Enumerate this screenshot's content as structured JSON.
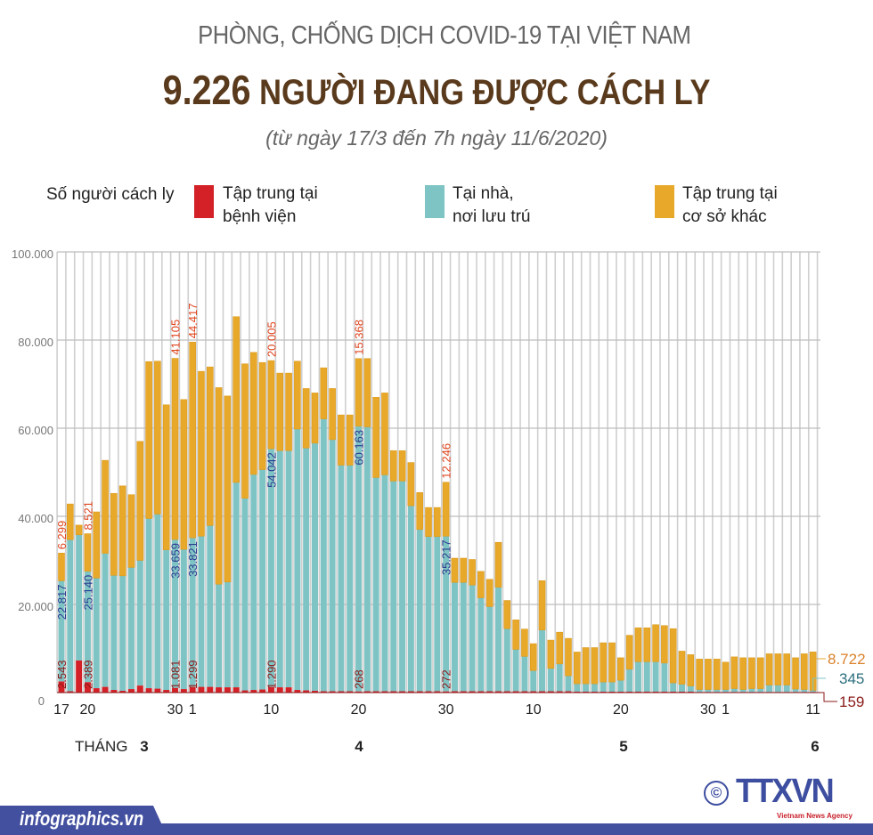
{
  "header": {
    "supertitle": "PHÒNG, CHỐNG DỊCH COVID-19 TẠI VIỆT NAM",
    "title_number": "9.226",
    "title_text": "NGƯỜI ĐANG ĐƯỢC CÁCH LY",
    "subtitle": "(từ ngày 17/3 đến 7h ngày 11/6/2020)"
  },
  "legend": {
    "title": "Số người cách ly",
    "items": [
      {
        "line1": "Tập trung tại",
        "line2": "bệnh viện",
        "color": "#d42027"
      },
      {
        "line1": "Tại nhà,",
        "line2": "nơi lưu trú",
        "color": "#7fc4c4"
      },
      {
        "line1": "Tập trung tại",
        "line2": "cơ sở khác",
        "color": "#e8a92a"
      }
    ]
  },
  "chart_data": {
    "type": "bar",
    "stacked": true,
    "ylim": [
      0,
      100000
    ],
    "yticks": [
      "0",
      "20.000",
      "40.000",
      "60.000",
      "80.000",
      "100.000"
    ],
    "grid": true,
    "legend_position": "top",
    "xtick_labels": [
      {
        "day": 0,
        "label": "17"
      },
      {
        "day": 3,
        "label": "20"
      },
      {
        "day": 13,
        "label": "30"
      },
      {
        "day": 15,
        "label": "1"
      },
      {
        "day": 24,
        "label": "10"
      },
      {
        "day": 34,
        "label": "20"
      },
      {
        "day": 44,
        "label": "30"
      },
      {
        "day": 54,
        "label": "10"
      },
      {
        "day": 64,
        "label": "20"
      },
      {
        "day": 74,
        "label": "30"
      },
      {
        "day": 76,
        "label": "1"
      },
      {
        "day": 86,
        "label": "11"
      }
    ],
    "month_prefix": "THÁNG",
    "months": [
      {
        "day": 3,
        "label": "3"
      },
      {
        "day": 34,
        "label": "4"
      },
      {
        "day": 64,
        "label": "5"
      },
      {
        "day": 86,
        "label": "6"
      }
    ],
    "categories": [
      "17/3",
      "18/3",
      "19/3",
      "20/3",
      "21/3",
      "22/3",
      "23/3",
      "24/3",
      "25/3",
      "26/3",
      "27/3",
      "28/3",
      "29/3",
      "30/3",
      "31/3",
      "1/4",
      "2/4",
      "3/4",
      "4/4",
      "5/4",
      "6/4",
      "7/4",
      "8/4",
      "9/4",
      "10/4",
      "11/4",
      "12/4",
      "13/4",
      "14/4",
      "15/4",
      "16/4",
      "17/4",
      "18/4",
      "19/4",
      "20/4",
      "21/4",
      "22/4",
      "23/4",
      "24/4",
      "25/4",
      "26/4",
      "27/4",
      "28/4",
      "29/4",
      "30/4",
      "1/5",
      "2/5",
      "3/5",
      "4/5",
      "5/5",
      "6/5",
      "7/5",
      "8/5",
      "9/5",
      "10/5",
      "11/5",
      "12/5",
      "13/5",
      "14/5",
      "15/5",
      "16/5",
      "17/5",
      "18/5",
      "19/5",
      "20/5",
      "21/5",
      "22/5",
      "23/5",
      "24/5",
      "25/5",
      "26/5",
      "27/5",
      "28/5",
      "29/5",
      "30/5",
      "31/5",
      "1/6",
      "2/6",
      "3/6",
      "4/6",
      "5/6",
      "6/6",
      "7/6",
      "8/6",
      "9/6",
      "10/6",
      "11/6"
    ],
    "series": [
      {
        "name": "Tập trung tại bệnh viện",
        "color": "#d42027",
        "values": [
          2543,
          300,
          7300,
          2389,
          1000,
          1300,
          600,
          400,
          800,
          1600,
          1000,
          900,
          600,
          1081,
          800,
          1299,
          1300,
          1300,
          1200,
          1200,
          1200,
          500,
          600,
          700,
          1290,
          1200,
          1200,
          600,
          500,
          400,
          300,
          300,
          300,
          300,
          268,
          300,
          300,
          300,
          300,
          300,
          300,
          300,
          300,
          300,
          272,
          300,
          300,
          300,
          300,
          300,
          300,
          300,
          300,
          300,
          300,
          300,
          300,
          300,
          300,
          200,
          200,
          200,
          200,
          200,
          200,
          200,
          200,
          200,
          200,
          200,
          200,
          200,
          200,
          150,
          150,
          150,
          150,
          150,
          150,
          150,
          150,
          150,
          150,
          150,
          150,
          150,
          159
        ]
      },
      {
        "name": "Tại nhà, nơi lưu trú",
        "color": "#7fc4c4",
        "values": [
          22817,
          34400,
          28500,
          25140,
          25000,
          30300,
          26000,
          26100,
          27600,
          28400,
          38500,
          39600,
          31800,
          33659,
          31700,
          33821,
          34200,
          36600,
          23400,
          23900,
          46500,
          43600,
          48900,
          49900,
          54042,
          53700,
          53700,
          59200,
          55000,
          56200,
          61800,
          57100,
          51300,
          51300,
          60163,
          60000,
          48500,
          49100,
          47700,
          47700,
          42100,
          36700,
          35100,
          35100,
          35217,
          24700,
          24700,
          24100,
          21200,
          19200,
          23600,
          14200,
          9500,
          7900,
          4700,
          13900,
          5200,
          6200,
          3500,
          1800,
          1800,
          1800,
          2200,
          2200,
          2600,
          5100,
          6800,
          6800,
          6800,
          6500,
          2000,
          1700,
          1300,
          550,
          550,
          550,
          550,
          750,
          550,
          750,
          750,
          1550,
          1550,
          1550,
          650,
          550,
          345
        ]
      },
      {
        "name": "Tập trung tại cơ sở khác",
        "color": "#e8a92a",
        "values": [
          6299,
          8100,
          2200,
          8521,
          15000,
          21100,
          18600,
          20400,
          16500,
          27000,
          35600,
          34700,
          32900,
          41105,
          34000,
          44417,
          37400,
          36000,
          44600,
          42200,
          37600,
          30500,
          27700,
          24300,
          20005,
          17600,
          17600,
          15400,
          13500,
          11400,
          11600,
          11600,
          11400,
          11400,
          15368,
          15500,
          18200,
          18600,
          6900,
          6900,
          9800,
          8400,
          6600,
          6600,
          12246,
          5500,
          5500,
          5800,
          6000,
          6200,
          10200,
          6400,
          6700,
          6200,
          6100,
          11200,
          6400,
          7200,
          8500,
          7200,
          8200,
          8200,
          8900,
          8900,
          5100,
          7700,
          7700,
          7700,
          8400,
          8500,
          12300,
          7500,
          7100,
          6900,
          6900,
          6900,
          6200,
          7200,
          7200,
          7000,
          7000,
          7100,
          7100,
          7100,
          7100,
          8100,
          8722
        ]
      }
    ],
    "annotations": [
      {
        "day": 0,
        "hospital": "2.543",
        "home": "22.817",
        "other": "6.299"
      },
      {
        "day": 3,
        "hospital": "2.389",
        "home": "25.140",
        "other": "8.521"
      },
      {
        "day": 13,
        "hospital": "1.081",
        "home": "33.659",
        "other": "41.105"
      },
      {
        "day": 15,
        "hospital": "1.299",
        "home": "33.821",
        "other": "44.417"
      },
      {
        "day": 24,
        "hospital": "1.290",
        "home": "54.042",
        "other": "20.005"
      },
      {
        "day": 34,
        "hospital": "268",
        "home": "60.163",
        "other": "15.368"
      },
      {
        "day": 44,
        "hospital": "272",
        "home": "35.217",
        "other": "12.246"
      }
    ],
    "end_labels": {
      "other": "8.722",
      "home": "345",
      "hospital": "159"
    }
  },
  "footer": {
    "site": "infographics.vn",
    "copyright": "©",
    "logo": "TTXVN",
    "logo_sub": "Vietnam News Agency"
  }
}
